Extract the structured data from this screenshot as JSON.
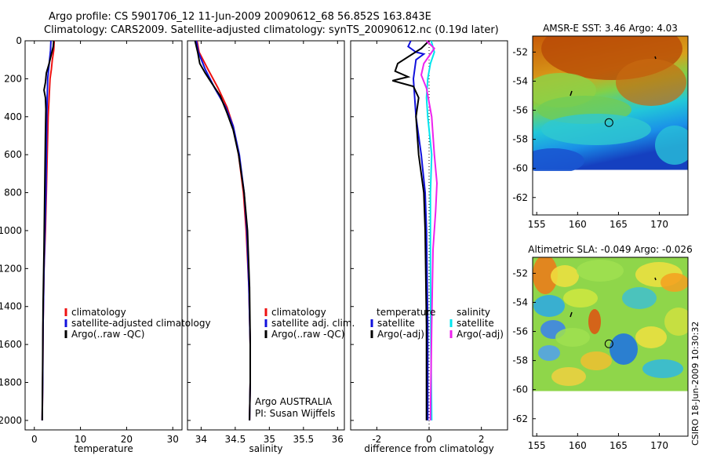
{
  "header": {
    "line1": "Argo profile: CS 5901706_12 11-Jun-2009 20090612_68 56.852S 163.843E",
    "line2": "Climatology: CARS2009. Satellite-adjusted climatology: synTS_20090612.nc (0.19d later)"
  },
  "side_note": "CSIRO 18-Jun-2009 10:30:32",
  "colors": {
    "climatology": "#ee1111",
    "satellite": "#1111dd",
    "argo": "#000000",
    "sat_salinity": "#00e5ee",
    "argo_salinity": "#ee22ee"
  },
  "chart_data": [
    {
      "type": "line",
      "panel": "temperature",
      "xlabel": "temperature",
      "xlim": [
        -2,
        32
      ],
      "xticks": [
        "0",
        "10",
        "20",
        "30"
      ],
      "ylim": [
        0,
        2050
      ],
      "yreversed": true,
      "yticks": [
        "0",
        "200",
        "400",
        "600",
        "800",
        "1000",
        "1200",
        "1400",
        "1600",
        "1800",
        "2000"
      ],
      "series": [
        {
          "name": "climatology",
          "color": "#ee1111",
          "points": [
            [
              4.3,
              0
            ],
            [
              4.2,
              50
            ],
            [
              3.9,
              100
            ],
            [
              3.7,
              150
            ],
            [
              3.4,
              200
            ],
            [
              3.2,
              300
            ],
            [
              3.0,
              400
            ],
            [
              2.8,
              600
            ],
            [
              2.6,
              800
            ],
            [
              2.4,
              1000
            ],
            [
              2.1,
              1200
            ],
            [
              1.9,
              1500
            ],
            [
              1.8,
              1800
            ],
            [
              1.7,
              2000
            ]
          ]
        },
        {
          "name": "satellite-adjusted climatology",
          "color": "#1111dd",
          "points": [
            [
              3.6,
              0
            ],
            [
              3.5,
              50
            ],
            [
              3.3,
              100
            ],
            [
              3.1,
              150
            ],
            [
              2.9,
              200
            ],
            [
              2.8,
              300
            ],
            [
              2.7,
              400
            ],
            [
              2.6,
              600
            ],
            [
              2.5,
              800
            ],
            [
              2.3,
              1000
            ],
            [
              2.1,
              1200
            ],
            [
              1.9,
              1500
            ],
            [
              1.8,
              1800
            ],
            [
              1.7,
              2000
            ]
          ]
        },
        {
          "name": "Argo(..raw -QC)",
          "color": "#000000",
          "points": [
            [
              4.2,
              0
            ],
            [
              4.1,
              30
            ],
            [
              3.2,
              120
            ],
            [
              2.6,
              170
            ],
            [
              2.4,
              220
            ],
            [
              2.1,
              260
            ],
            [
              2.4,
              300
            ],
            [
              2.5,
              360
            ],
            [
              2.4,
              500
            ],
            [
              2.3,
              700
            ],
            [
              2.2,
              900
            ],
            [
              2.1,
              1100
            ],
            [
              1.9,
              1400
            ],
            [
              1.8,
              1700
            ],
            [
              1.7,
              2000
            ]
          ]
        }
      ],
      "legend": [
        {
          "label": "climatology",
          "color": "#ee1111"
        },
        {
          "label": "satellite-adjusted climatology",
          "color": "#1111dd"
        },
        {
          "label": "Argo(..raw -QC)",
          "color": "#000000"
        }
      ]
    },
    {
      "type": "line",
      "panel": "salinity",
      "xlabel": "salinity",
      "xlim": [
        33.8,
        36.1
      ],
      "xticks": [
        "34",
        "34.5",
        "35",
        "35.5",
        "36"
      ],
      "ylim": [
        0,
        2050
      ],
      "yreversed": true,
      "series": [
        {
          "name": "climatology",
          "color": "#ee1111",
          "points": [
            [
              33.94,
              0
            ],
            [
              33.97,
              60
            ],
            [
              34.1,
              150
            ],
            [
              34.25,
              250
            ],
            [
              34.38,
              350
            ],
            [
              34.47,
              450
            ],
            [
              34.55,
              600
            ],
            [
              34.62,
              800
            ],
            [
              34.66,
              1000
            ],
            [
              34.7,
              1300
            ],
            [
              34.72,
              1600
            ],
            [
              34.72,
              1800
            ],
            [
              34.71,
              2000
            ]
          ]
        },
        {
          "name": "satellite adj. clim.",
          "color": "#1111dd",
          "points": [
            [
              33.93,
              0
            ],
            [
              33.96,
              60
            ],
            [
              34.06,
              150
            ],
            [
              34.2,
              250
            ],
            [
              34.36,
              350
            ],
            [
              34.47,
              450
            ],
            [
              34.56,
              600
            ],
            [
              34.63,
              800
            ],
            [
              34.67,
              1000
            ],
            [
              34.7,
              1300
            ],
            [
              34.72,
              1600
            ],
            [
              34.72,
              1800
            ],
            [
              34.71,
              2000
            ]
          ]
        },
        {
          "name": "Argo(..raw -QC)",
          "color": "#000000",
          "points": [
            [
              33.91,
              0
            ],
            [
              33.95,
              60
            ],
            [
              33.98,
              120
            ],
            [
              34.06,
              170
            ],
            [
              34.15,
              220
            ],
            [
              34.28,
              290
            ],
            [
              34.38,
              380
            ],
            [
              34.47,
              470
            ],
            [
              34.55,
              600
            ],
            [
              34.63,
              800
            ],
            [
              34.68,
              1000
            ],
            [
              34.71,
              1300
            ],
            [
              34.72,
              1600
            ],
            [
              34.72,
              1800
            ],
            [
              34.71,
              2000
            ]
          ]
        }
      ],
      "legend": [
        {
          "label": "climatology",
          "color": "#ee1111"
        },
        {
          "label": "satellite adj. clim.",
          "color": "#1111dd"
        },
        {
          "label": "Argo(..raw -QC)",
          "color": "#000000"
        }
      ],
      "annotations": [
        "Argo AUSTRALIA",
        "PI: Susan Wijffels"
      ]
    },
    {
      "type": "line",
      "panel": "difference",
      "xlabel": "difference from climatology",
      "xlim": [
        -3,
        3
      ],
      "xticks": [
        "-2",
        "0",
        "2"
      ],
      "ylim": [
        0,
        2050
      ],
      "yreversed": true,
      "series": [
        {
          "name": "temperature satellite",
          "color": "#1111dd",
          "points": [
            [
              -0.7,
              0
            ],
            [
              -0.8,
              30
            ],
            [
              -0.5,
              60
            ],
            [
              -0.2,
              70
            ],
            [
              -0.5,
              100
            ],
            [
              -0.6,
              200
            ],
            [
              -0.5,
              400
            ],
            [
              -0.3,
              600
            ],
            [
              -0.15,
              800
            ],
            [
              -0.1,
              1000
            ],
            [
              -0.05,
              1500
            ],
            [
              -0.05,
              2000
            ]
          ]
        },
        {
          "name": "temperature Argo(-adj)",
          "color": "#000000",
          "points": [
            [
              0,
              0
            ],
            [
              -0.3,
              40
            ],
            [
              -1.2,
              120
            ],
            [
              -1.3,
              160
            ],
            [
              -0.8,
              190
            ],
            [
              -1.4,
              210
            ],
            [
              -0.6,
              240
            ],
            [
              -0.4,
              300
            ],
            [
              -0.5,
              400
            ],
            [
              -0.4,
              600
            ],
            [
              -0.2,
              800
            ],
            [
              -0.15,
              1000
            ],
            [
              -0.1,
              1500
            ],
            [
              -0.1,
              2000
            ]
          ]
        },
        {
          "name": "salinity satellite",
          "color": "#00e5ee",
          "points": [
            [
              0.08,
              0
            ],
            [
              0.2,
              60
            ],
            [
              0.05,
              120
            ],
            [
              -0.05,
              200
            ],
            [
              -0.1,
              300
            ],
            [
              -0.05,
              400
            ],
            [
              0.1,
              600
            ],
            [
              0.05,
              800
            ],
            [
              0.05,
              1200
            ],
            [
              0.07,
              1600
            ],
            [
              0.1,
              2000
            ]
          ]
        },
        {
          "name": "salinity Argo(-adj)",
          "color": "#ee22ee",
          "points": [
            [
              -0.1,
              0
            ],
            [
              0.2,
              40
            ],
            [
              -0.2,
              120
            ],
            [
              -0.3,
              180
            ],
            [
              -0.1,
              250
            ],
            [
              0.1,
              400
            ],
            [
              0.2,
              600
            ],
            [
              0.3,
              750
            ],
            [
              0.25,
              900
            ],
            [
              0.15,
              1100
            ],
            [
              0.1,
              1500
            ],
            [
              0.05,
              2000
            ]
          ]
        }
      ],
      "legend_headers": [
        "temperature",
        "salinity"
      ],
      "legend_left": [
        {
          "label": "satellite",
          "color": "#1111dd"
        },
        {
          "label": "Argo(-adj)",
          "color": "#000000"
        }
      ],
      "legend_right": [
        {
          "label": "satellite",
          "color": "#00e5ee"
        },
        {
          "label": "Argo(-adj)",
          "color": "#ee22ee"
        }
      ]
    },
    {
      "type": "heatmap",
      "panel": "sst_map",
      "title": "AMSR-E SST: 3.46 Argo: 4.03",
      "xlim": [
        154.5,
        173.5
      ],
      "ylim": [
        -63.2,
        -50.9
      ],
      "xticks": [
        "155",
        "160",
        "165",
        "170"
      ],
      "yticks": [
        "-52",
        "-54",
        "-56",
        "-58",
        "-60",
        "-62"
      ],
      "data_lat_range": [
        -60.1,
        -50.9
      ],
      "marker": {
        "lon": 163.84,
        "lat": -56.85
      }
    },
    {
      "type": "heatmap",
      "panel": "sla_map",
      "title": "Altimetric SLA: -0.049 Argo: -0.026",
      "xlim": [
        154.5,
        173.5
      ],
      "ylim": [
        -63.2,
        -50.9
      ],
      "xticks": [
        "155",
        "160",
        "165",
        "170"
      ],
      "yticks": [
        "-52",
        "-54",
        "-56",
        "-58",
        "-60",
        "-62"
      ],
      "data_lat_range": [
        -60.1,
        -50.9
      ],
      "marker": {
        "lon": 163.84,
        "lat": -56.85
      }
    }
  ]
}
